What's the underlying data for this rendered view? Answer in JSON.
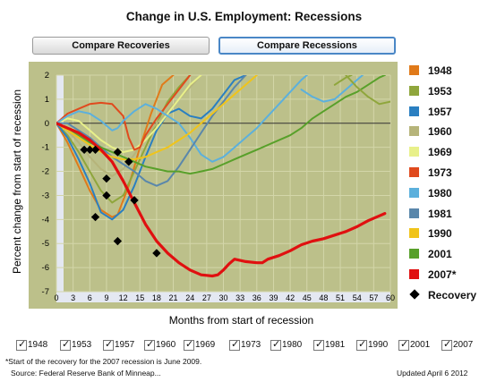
{
  "title": "Change in U.S. Employment: Recessions",
  "buttons": {
    "compare_recoveries": "Compare Recoveries",
    "compare_recessions": "Compare Recessions"
  },
  "footnote": "*Start of the recovery for the 2007 recession is June 2009.",
  "source": "Source: Federal Reserve Bank of Minneap...",
  "updated": "Updated April 6 2012",
  "checkboxes": [
    {
      "label": "1948",
      "checked": true
    },
    {
      "label": "1953",
      "checked": true
    },
    {
      "label": "1957",
      "checked": true
    },
    {
      "label": "1960",
      "checked": true
    },
    {
      "label": "1969",
      "checked": true
    },
    {
      "label": "1973",
      "checked": true
    },
    {
      "label": "1980",
      "checked": true
    },
    {
      "label": "1981",
      "checked": true
    },
    {
      "label": "1990",
      "checked": true
    },
    {
      "label": "2001",
      "checked": true
    },
    {
      "label": "2007",
      "checked": true
    }
  ],
  "colors": {
    "plot_bg": "#bcc08a",
    "axis_band": "#e4e8f2",
    "grid": "#d3d6a9",
    "zero_line": "#333333"
  },
  "chart_data": {
    "type": "line",
    "title": "Change in U.S. Employment: Recessions",
    "xlabel": "Months from start of recession",
    "ylabel": "Percent change from start of recession",
    "xlim": [
      0,
      60
    ],
    "ylim": [
      -7,
      2
    ],
    "x_ticks": [
      "0",
      "3",
      "6",
      "9",
      "12",
      "15",
      "18",
      "21",
      "24",
      "27",
      "30",
      "33",
      "36",
      "39",
      "42",
      "45",
      "48",
      "51",
      "54",
      "57",
      "60"
    ],
    "y_ticks": [
      "2",
      "1",
      "0",
      "-1",
      "-2",
      "-3",
      "-4",
      "-5",
      "-6",
      "-7"
    ],
    "grid": true,
    "legend_position": "right",
    "series": [
      {
        "name": "1948",
        "color": "#e07a1a",
        "points": [
          [
            0,
            0
          ],
          [
            2,
            -0.8
          ],
          [
            4,
            -1.8
          ],
          [
            6,
            -2.8
          ],
          [
            8,
            -3.6
          ],
          [
            10,
            -3.9
          ],
          [
            11,
            -3.8
          ],
          [
            13,
            -2.6
          ],
          [
            15,
            -1
          ],
          [
            17,
            0.4
          ],
          [
            19,
            1.6
          ],
          [
            21,
            2
          ]
        ]
      },
      {
        "name": "1953",
        "color": "#8fa63c",
        "points": [
          [
            0,
            0
          ],
          [
            2,
            -0.5
          ],
          [
            4,
            -1.2
          ],
          [
            6,
            -2
          ],
          [
            8,
            -2.8
          ],
          [
            10,
            -3.3
          ],
          [
            12,
            -3
          ],
          [
            14,
            -2
          ],
          [
            16,
            -1
          ],
          [
            18,
            0
          ],
          [
            20,
            0.9
          ],
          [
            22,
            1.5
          ],
          [
            24,
            2
          ]
        ]
      },
      {
        "name": "1957",
        "color": "#2a7fc1",
        "points": [
          [
            0,
            0
          ],
          [
            2,
            -0.6
          ],
          [
            4,
            -1.5
          ],
          [
            6,
            -2.5
          ],
          [
            8,
            -3.7
          ],
          [
            10,
            -4
          ],
          [
            12,
            -3.6
          ],
          [
            14,
            -2.6
          ],
          [
            16,
            -1.4
          ],
          [
            18,
            -0.3
          ],
          [
            20,
            0.4
          ],
          [
            22,
            0.6
          ],
          [
            24,
            0.3
          ],
          [
            26,
            0.2
          ],
          [
            28,
            0.6
          ],
          [
            30,
            1.2
          ],
          [
            32,
            1.8
          ],
          [
            34,
            2
          ]
        ]
      },
      {
        "name": "1960",
        "color": "#b6b47a",
        "points": [
          [
            0,
            0
          ],
          [
            2,
            -0.3
          ],
          [
            4,
            -0.8
          ],
          [
            6,
            -1.4
          ],
          [
            8,
            -1.9
          ],
          [
            10,
            -2.2
          ],
          [
            12,
            -1.9
          ],
          [
            14,
            -1.3
          ],
          [
            16,
            -0.6
          ],
          [
            18,
            0
          ],
          [
            20,
            0.5
          ],
          [
            22,
            1
          ],
          [
            24,
            1.5
          ],
          [
            26,
            2
          ]
        ]
      },
      {
        "name": "1969",
        "color": "#e8f08a",
        "points": [
          [
            0,
            0
          ],
          [
            2,
            0.2
          ],
          [
            4,
            0.1
          ],
          [
            6,
            -0.3
          ],
          [
            8,
            -0.7
          ],
          [
            10,
            -1
          ],
          [
            12,
            -1.2
          ],
          [
            14,
            -1.1
          ],
          [
            16,
            -0.7
          ],
          [
            18,
            -0.2
          ],
          [
            20,
            0.4
          ],
          [
            22,
            1
          ],
          [
            24,
            1.6
          ],
          [
            26,
            2
          ]
        ]
      },
      {
        "name": "1973",
        "color": "#e04a1e",
        "points": [
          [
            0,
            0
          ],
          [
            2,
            0.4
          ],
          [
            4,
            0.6
          ],
          [
            6,
            0.8
          ],
          [
            8,
            0.85
          ],
          [
            10,
            0.8
          ],
          [
            12,
            0.3
          ],
          [
            13,
            -0.6
          ],
          [
            14,
            -1.1
          ],
          [
            15,
            -1
          ],
          [
            16,
            -0.5
          ],
          [
            18,
            0.2
          ],
          [
            20,
            0.8
          ],
          [
            22,
            1.4
          ],
          [
            24,
            2
          ]
        ]
      },
      {
        "name": "1980",
        "color": "#5cb0dc",
        "points": [
          [
            0,
            0
          ],
          [
            2,
            0.3
          ],
          [
            4,
            0.5
          ],
          [
            6,
            0.4
          ],
          [
            8,
            0.1
          ],
          [
            10,
            -0.3
          ],
          [
            11,
            -0.2
          ],
          [
            12,
            0.1
          ],
          [
            14,
            0.5
          ],
          [
            16,
            0.8
          ],
          [
            18,
            0.6
          ],
          [
            20,
            0.3
          ],
          [
            22,
            0
          ],
          [
            24,
            -0.6
          ],
          [
            26,
            -1.3
          ],
          [
            28,
            -1.6
          ],
          [
            30,
            -1.4
          ],
          [
            32,
            -1
          ],
          [
            34,
            -0.6
          ],
          [
            36,
            -0.2
          ],
          [
            38,
            0.3
          ],
          [
            40,
            0.8
          ],
          [
            42,
            1.3
          ],
          [
            44,
            1.8
          ],
          [
            45,
            2
          ]
        ]
      },
      {
        "name": "1981",
        "color": "#5a87ab",
        "points": [
          [
            0,
            0
          ],
          [
            2,
            0
          ],
          [
            4,
            -0.3
          ],
          [
            6,
            -0.6
          ],
          [
            8,
            -1
          ],
          [
            10,
            -1.4
          ],
          [
            12,
            -1.7
          ],
          [
            14,
            -2
          ],
          [
            16,
            -2.4
          ],
          [
            18,
            -2.6
          ],
          [
            20,
            -2.4
          ],
          [
            22,
            -1.8
          ],
          [
            24,
            -1.1
          ],
          [
            26,
            -0.4
          ],
          [
            28,
            0.3
          ],
          [
            30,
            0.9
          ],
          [
            32,
            1.5
          ],
          [
            34,
            2
          ]
        ]
      },
      {
        "name": "1990",
        "color": "#f0c41a",
        "points": [
          [
            0,
            0
          ],
          [
            2,
            -0.3
          ],
          [
            4,
            -0.6
          ],
          [
            6,
            -0.9
          ],
          [
            8,
            -1.2
          ],
          [
            10,
            -1.4
          ],
          [
            12,
            -1.5
          ],
          [
            14,
            -1.5
          ],
          [
            16,
            -1.4
          ],
          [
            18,
            -1.2
          ],
          [
            20,
            -1
          ],
          [
            22,
            -0.7
          ],
          [
            24,
            -0.4
          ],
          [
            26,
            0
          ],
          [
            28,
            0.4
          ],
          [
            30,
            0.8
          ],
          [
            32,
            1.2
          ],
          [
            34,
            1.6
          ],
          [
            36,
            2
          ]
        ]
      },
      {
        "name": "2001",
        "color": "#58a02a",
        "points": [
          [
            0,
            0
          ],
          [
            2,
            -0.2
          ],
          [
            4,
            -0.5
          ],
          [
            6,
            -0.8
          ],
          [
            8,
            -1
          ],
          [
            10,
            -1.2
          ],
          [
            12,
            -1.4
          ],
          [
            14,
            -1.6
          ],
          [
            16,
            -1.8
          ],
          [
            18,
            -1.9
          ],
          [
            20,
            -2
          ],
          [
            22,
            -2
          ],
          [
            24,
            -2.1
          ],
          [
            26,
            -2
          ],
          [
            28,
            -1.9
          ],
          [
            30,
            -1.7
          ],
          [
            32,
            -1.5
          ],
          [
            34,
            -1.3
          ],
          [
            36,
            -1.1
          ],
          [
            38,
            -0.9
          ],
          [
            40,
            -0.7
          ],
          [
            42,
            -0.5
          ],
          [
            44,
            -0.2
          ],
          [
            46,
            0.2
          ],
          [
            48,
            0.5
          ],
          [
            50,
            0.8
          ],
          [
            52,
            1.1
          ],
          [
            54,
            1.3
          ],
          [
            56,
            1.6
          ],
          [
            58,
            1.9
          ],
          [
            59,
            2
          ]
        ]
      },
      {
        "name": "2007",
        "color": "#e01010",
        "points": [
          [
            0,
            0
          ],
          [
            2,
            -0.2
          ],
          [
            4,
            -0.4
          ],
          [
            6,
            -0.7
          ],
          [
            8,
            -1.1
          ],
          [
            10,
            -1.6
          ],
          [
            12,
            -2.4
          ],
          [
            14,
            -3.3
          ],
          [
            16,
            -4.2
          ],
          [
            18,
            -4.9
          ],
          [
            20,
            -5.4
          ],
          [
            22,
            -5.8
          ],
          [
            24,
            -6.1
          ],
          [
            26,
            -6.3
          ],
          [
            28,
            -6.35
          ],
          [
            29,
            -6.3
          ],
          [
            30,
            -6.1
          ],
          [
            31,
            -5.85
          ],
          [
            32,
            -5.65
          ],
          [
            34,
            -5.75
          ],
          [
            36,
            -5.8
          ],
          [
            37,
            -5.8
          ],
          [
            38,
            -5.65
          ],
          [
            40,
            -5.5
          ],
          [
            42,
            -5.3
          ],
          [
            44,
            -5.05
          ],
          [
            46,
            -4.9
          ],
          [
            48,
            -4.8
          ],
          [
            50,
            -4.65
          ],
          [
            52,
            -4.5
          ],
          [
            54,
            -4.3
          ],
          [
            56,
            -4.05
          ],
          [
            58,
            -3.85
          ],
          [
            59,
            -3.75
          ]
        ]
      },
      {
        "name": "extension-a",
        "color": "#8fa63c",
        "points": [
          [
            50,
            1.6
          ],
          [
            52,
            1.9
          ],
          [
            53,
            2
          ]
        ]
      },
      {
        "name": "extension-b",
        "color": "#5cb0dc",
        "points": [
          [
            44,
            1.4
          ],
          [
            46,
            1.1
          ],
          [
            48,
            0.9
          ],
          [
            50,
            1
          ],
          [
            52,
            1.4
          ],
          [
            54,
            1.8
          ],
          [
            55,
            2
          ]
        ]
      },
      {
        "name": "extension-c",
        "color": "#8fa63c",
        "points": [
          [
            52,
            2
          ],
          [
            54,
            1.5
          ],
          [
            56,
            1.1
          ],
          [
            58,
            0.8
          ],
          [
            60,
            0.9
          ]
        ]
      }
    ],
    "recovery_markers": [
      [
        5,
        -1.1
      ],
      [
        6,
        -1.1
      ],
      [
        7,
        -1.1
      ],
      [
        9,
        -2.3
      ],
      [
        9,
        -3
      ],
      [
        7,
        -3.9
      ],
      [
        11,
        -1.2
      ],
      [
        11,
        -4.9
      ],
      [
        13,
        -1.6
      ],
      [
        14,
        -3.2
      ],
      [
        18,
        -5.4
      ]
    ]
  }
}
